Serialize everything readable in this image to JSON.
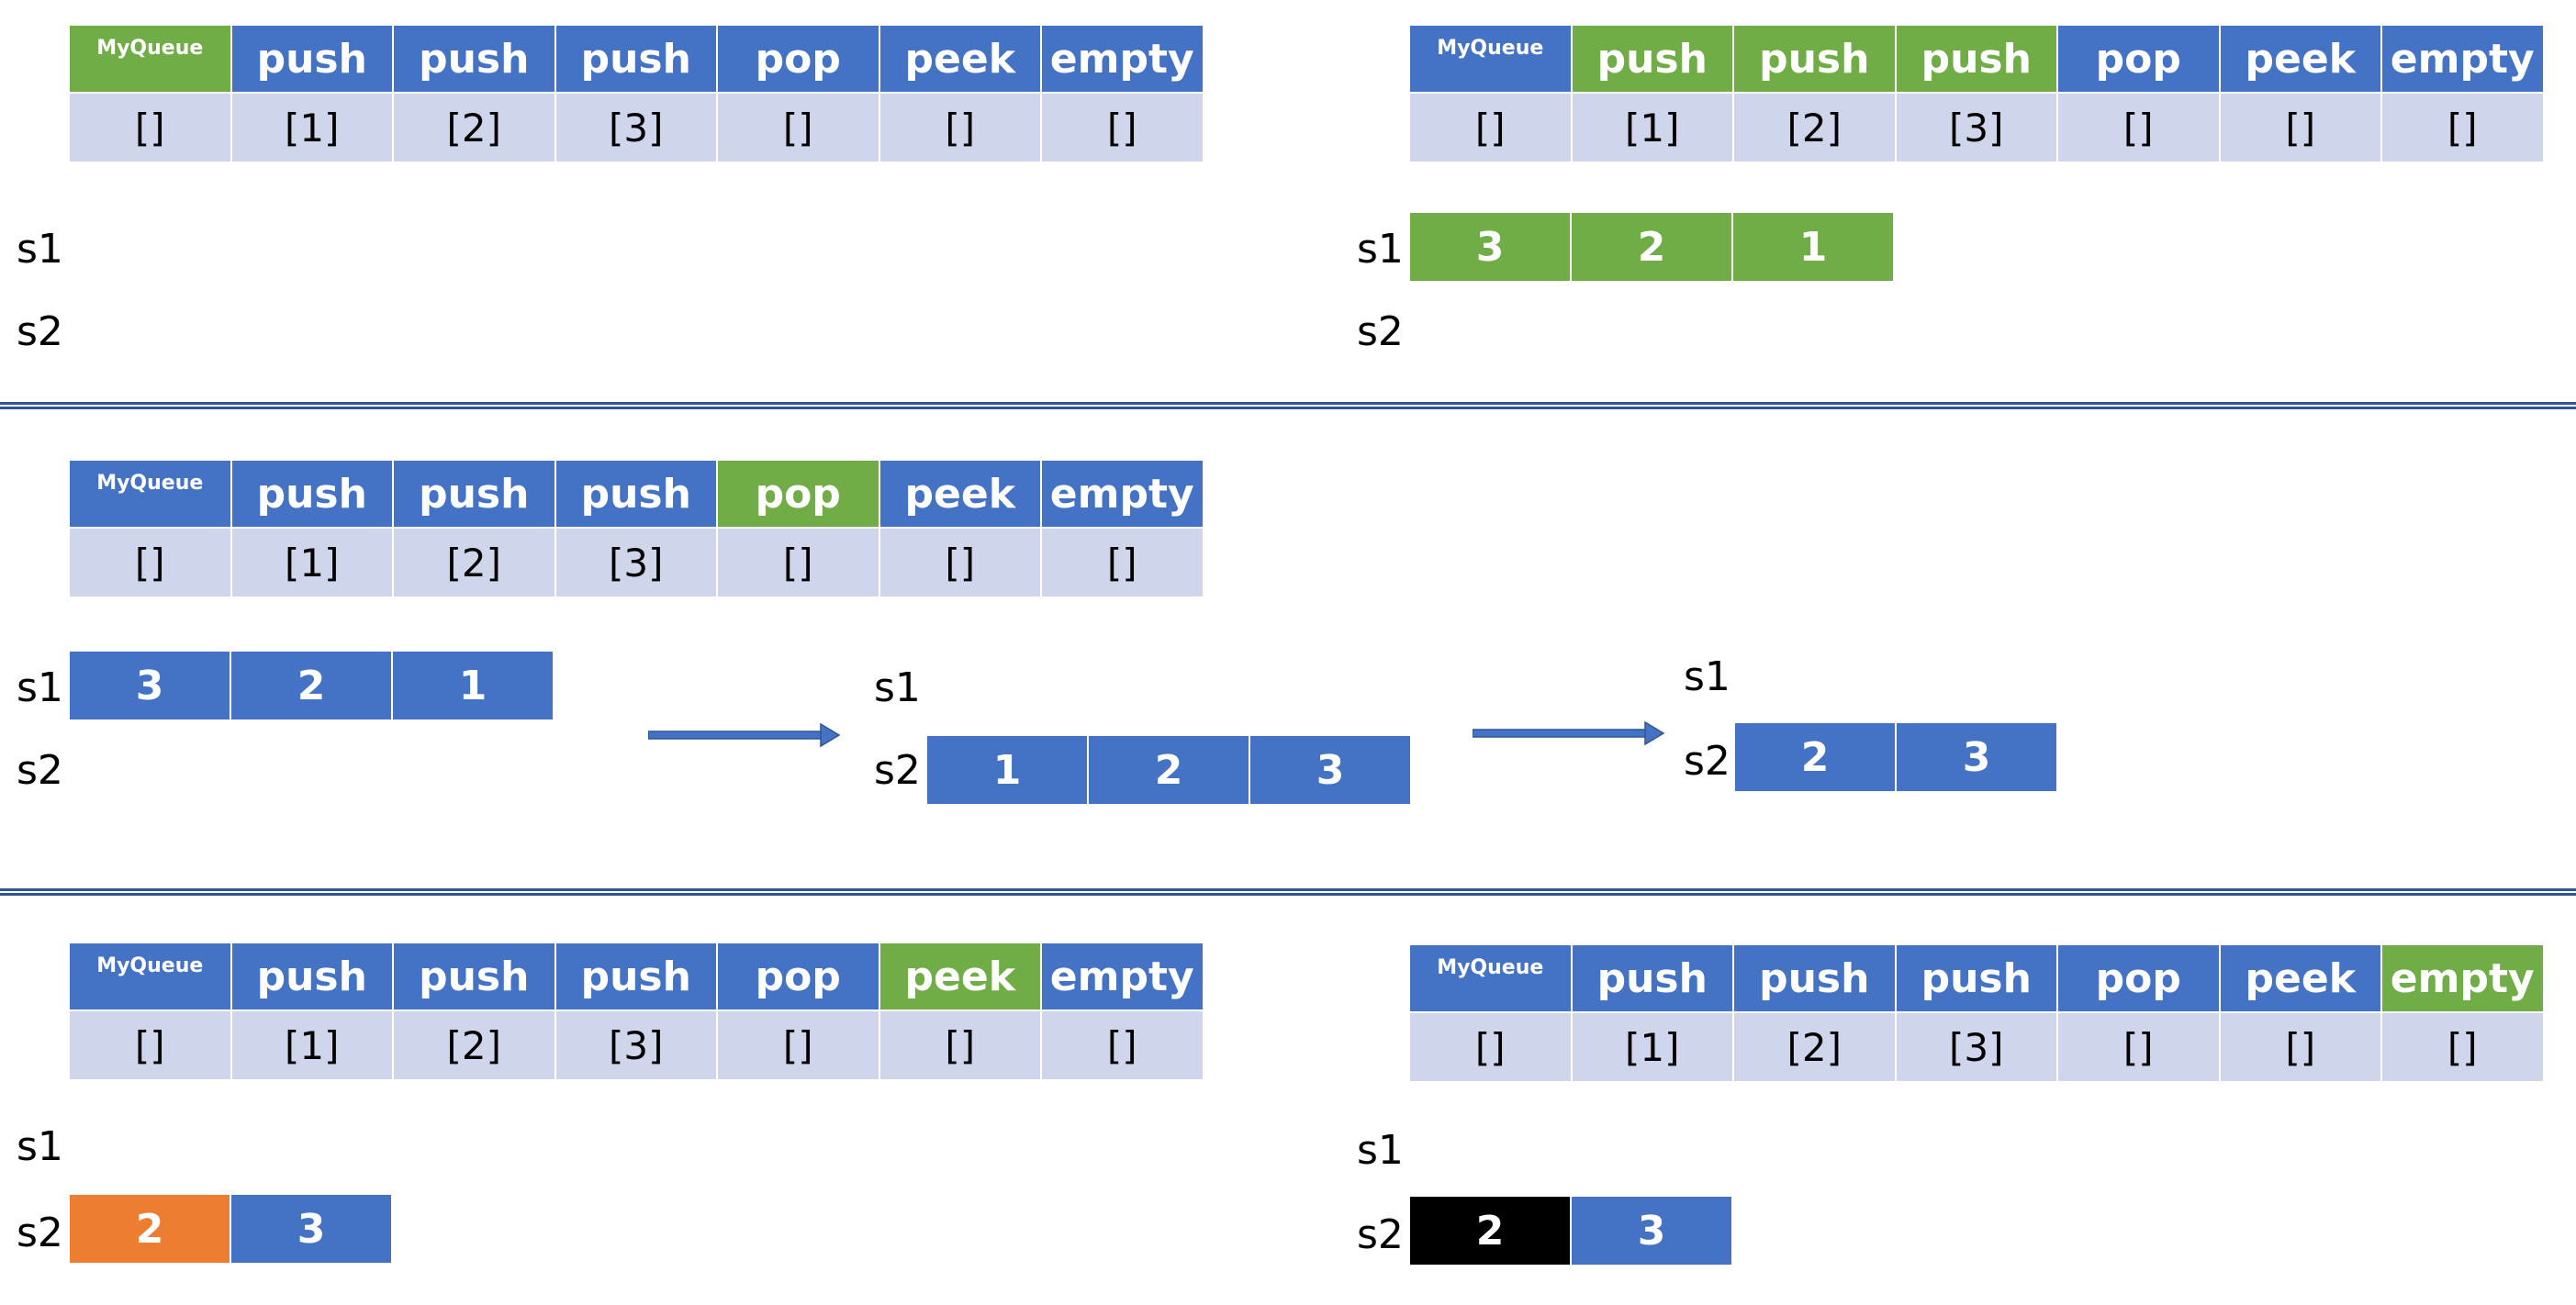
{
  "colors": {
    "blue": "#4472c4",
    "green": "#70ad47",
    "light": "#cfd5ea",
    "orange": "#ed7d31",
    "black": "#000000",
    "divider": "#2f5597"
  },
  "panels": [
    {
      "id": "p1",
      "ops": [
        "MyQueue",
        "push",
        "push",
        "push",
        "pop",
        "peek",
        "empty"
      ],
      "args": [
        "[]",
        "[1]",
        "[2]",
        "[3]",
        "[]",
        "[]",
        "[]"
      ],
      "active": [
        0
      ],
      "s1_label": "s1",
      "s2_label": "s2",
      "s1": [],
      "s2": []
    },
    {
      "id": "p2",
      "ops": [
        "MyQueue",
        "push",
        "push",
        "push",
        "pop",
        "peek",
        "empty"
      ],
      "args": [
        "[]",
        "[1]",
        "[2]",
        "[3]",
        "[]",
        "[]",
        "[]"
      ],
      "active": [
        1,
        2,
        3
      ],
      "s1_label": "s1",
      "s2_label": "s2",
      "s1": [
        {
          "v": "3",
          "c": "green"
        },
        {
          "v": "2",
          "c": "green"
        },
        {
          "v": "1",
          "c": "green"
        }
      ],
      "s2": []
    },
    {
      "id": "p3",
      "ops": [
        "MyQueue",
        "push",
        "push",
        "push",
        "pop",
        "peek",
        "empty"
      ],
      "args": [
        "[]",
        "[1]",
        "[2]",
        "[3]",
        "[]",
        "[]",
        "[]"
      ],
      "active": [
        4
      ],
      "steps": [
        {
          "s1_label": "s1",
          "s2_label": "s2",
          "s1": [
            {
              "v": "3",
              "c": "blue"
            },
            {
              "v": "2",
              "c": "blue"
            },
            {
              "v": "1",
              "c": "blue"
            }
          ],
          "s2": []
        },
        {
          "s1_label": "s1",
          "s2_label": "s2",
          "s1": [],
          "s2": [
            {
              "v": "1",
              "c": "blue"
            },
            {
              "v": "2",
              "c": "blue"
            },
            {
              "v": "3",
              "c": "blue"
            }
          ]
        },
        {
          "s1_label": "s1",
          "s2_label": "s2",
          "s1": [],
          "s2": [
            {
              "v": "2",
              "c": "blue"
            },
            {
              "v": "3",
              "c": "blue"
            }
          ]
        }
      ]
    },
    {
      "id": "p4",
      "ops": [
        "MyQueue",
        "push",
        "push",
        "push",
        "pop",
        "peek",
        "empty"
      ],
      "args": [
        "[]",
        "[1]",
        "[2]",
        "[3]",
        "[]",
        "[]",
        "[]"
      ],
      "active": [
        5
      ],
      "s1_label": "s1",
      "s2_label": "s2",
      "s1": [],
      "s2": [
        {
          "v": "2",
          "c": "orange"
        },
        {
          "v": "3",
          "c": "blue"
        }
      ]
    },
    {
      "id": "p5",
      "ops": [
        "MyQueue",
        "push",
        "push",
        "push",
        "pop",
        "peek",
        "empty"
      ],
      "args": [
        "[]",
        "[1]",
        "[2]",
        "[3]",
        "[]",
        "[]",
        "[]"
      ],
      "active": [
        6
      ],
      "s1_label": "s1",
      "s2_label": "s2",
      "s1": [],
      "s2": [
        {
          "v": "2",
          "c": "black"
        },
        {
          "v": "3",
          "c": "blue"
        }
      ]
    }
  ]
}
